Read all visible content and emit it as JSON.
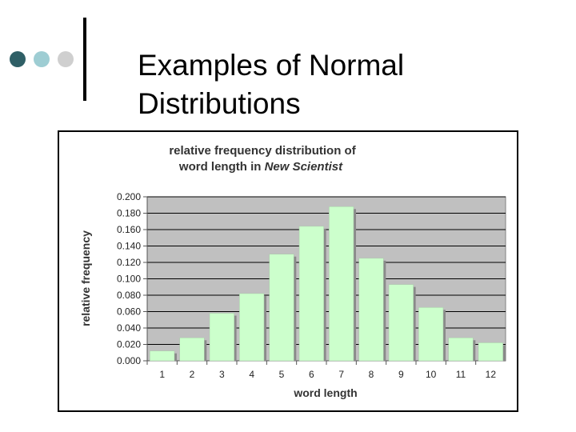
{
  "slide": {
    "title_line1": "Examples of Normal",
    "title_line2": "Distributions",
    "bullet_colors": [
      "#2f5f66",
      "#9ecdd3",
      "#cfcfcf"
    ]
  },
  "chart_data": {
    "type": "bar",
    "title_line1": "relative frequency distribution of",
    "title_line2_prefix": "word length in ",
    "title_line2_italic": "New Scientist",
    "xlabel": "word length",
    "ylabel": "relative frequency",
    "categories": [
      "1",
      "2",
      "3",
      "4",
      "5",
      "6",
      "7",
      "8",
      "9",
      "10",
      "11",
      "12"
    ],
    "values": [
      0.012,
      0.028,
      0.058,
      0.082,
      0.13,
      0.164,
      0.188,
      0.125,
      0.093,
      0.065,
      0.028,
      0.022
    ],
    "ylim": [
      0,
      0.2
    ],
    "yticks": [
      "0.000",
      "0.020",
      "0.040",
      "0.060",
      "0.080",
      "0.100",
      "0.120",
      "0.140",
      "0.160",
      "0.180",
      "0.200"
    ],
    "grid": true,
    "plot_background": "#c0c0c0",
    "bar_color": "#ccffcc",
    "bar_shadow_color": "#8a8a8a",
    "grid_color": "#000000"
  }
}
